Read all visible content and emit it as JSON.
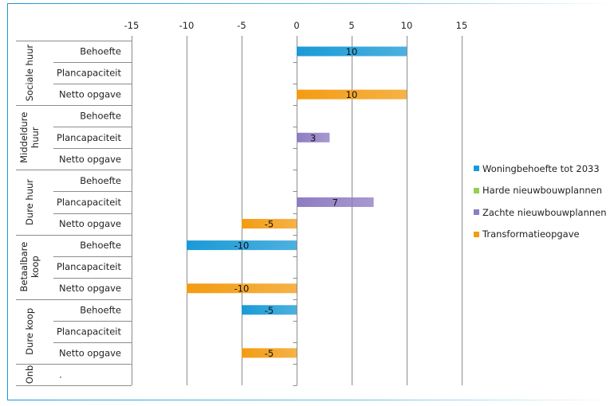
{
  "chart_data": {
    "type": "bar",
    "orientation": "horizontal",
    "title": "",
    "xlabel": "",
    "ylabel": "",
    "xlim": [
      -15,
      15
    ],
    "x_ticks": [
      -15,
      -10,
      -5,
      0,
      5,
      10,
      15
    ],
    "x_tick_labels": [
      "-15",
      "-10",
      "-5",
      "0",
      "5",
      "10",
      "15"
    ],
    "grid": true,
    "legend_position": "right",
    "groups": [
      {
        "label": "Sociale huur",
        "rows": [
          "Behoefte",
          "Plancapaciteit",
          "Netto opgave"
        ]
      },
      {
        "label": "Middeldure huur",
        "rows": [
          "Behoefte",
          "Plancapaciteit",
          "Netto opgave"
        ]
      },
      {
        "label": "Dure huur",
        "rows": [
          "Behoefte",
          "Plancapaciteit",
          "Netto opgave"
        ]
      },
      {
        "label": "Betaalbare koop",
        "rows": [
          "Behoefte",
          "Plancapaciteit",
          "Netto opgave"
        ]
      },
      {
        "label": "Dure koop",
        "rows": [
          "Behoefte",
          "Plancapaciteit",
          "Netto opgave"
        ]
      },
      {
        "label": "Onb",
        "rows": [
          "."
        ]
      }
    ],
    "series": [
      {
        "name": "Woningbehoefte tot 2033",
        "color": "#1a9ad6",
        "points": [
          {
            "row": 0,
            "value": 10
          },
          {
            "row": 9,
            "value": -10
          },
          {
            "row": 12,
            "value": -5
          }
        ]
      },
      {
        "name": "Harde nieuwbouwplannen",
        "color": "#92d050",
        "points": []
      },
      {
        "name": "Zachte nieuwbouwplannen",
        "color": "#8e7cc3",
        "points": [
          {
            "row": 4,
            "value": 3
          },
          {
            "row": 7,
            "value": 7
          }
        ]
      },
      {
        "name": "Transformatieopgave",
        "color": "#f39c12",
        "points": [
          {
            "row": 2,
            "value": 10
          },
          {
            "row": 8,
            "value": -5
          },
          {
            "row": 11,
            "value": -10
          },
          {
            "row": 14,
            "value": -5
          }
        ]
      }
    ]
  }
}
